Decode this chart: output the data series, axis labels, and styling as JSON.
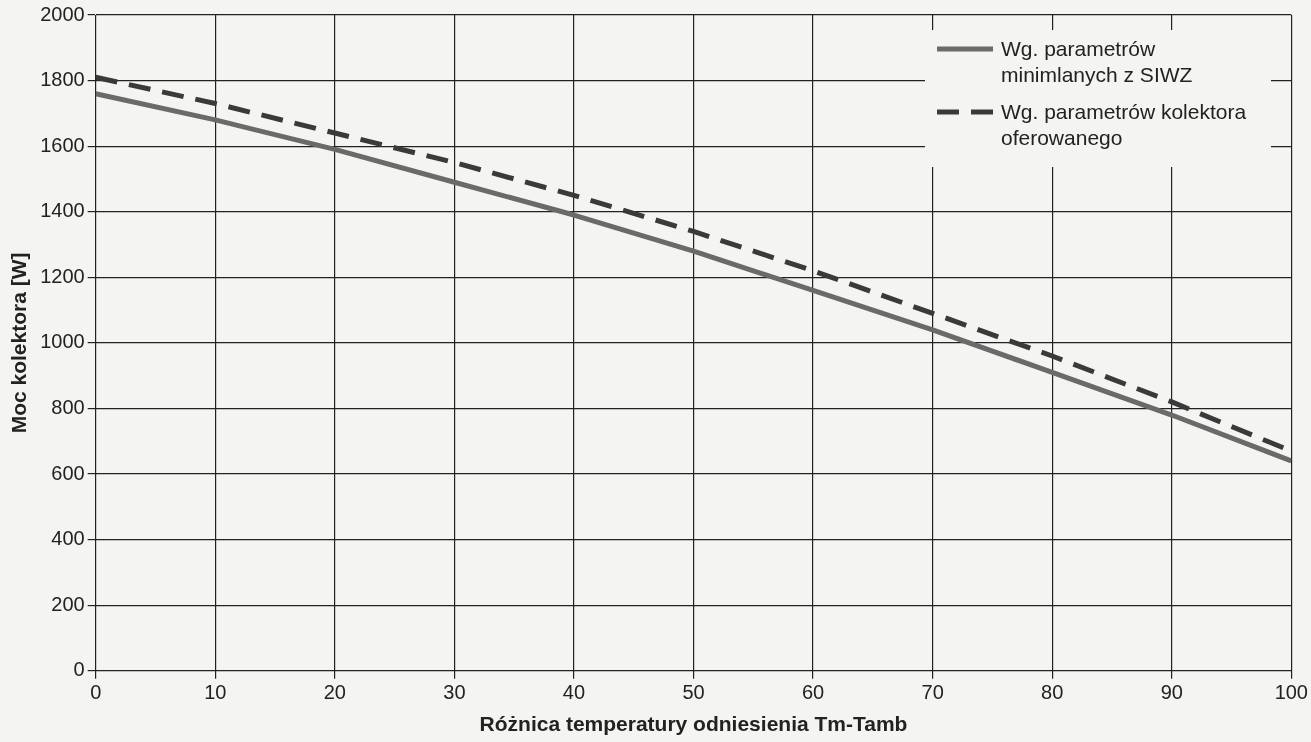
{
  "chart_data": {
    "type": "line",
    "xlabel": "Różnica temperatury odniesienia Tm-Tamb",
    "ylabel": "Moc kolektora [W]",
    "x": [
      0,
      10,
      20,
      30,
      40,
      50,
      60,
      70,
      80,
      90,
      100
    ],
    "series": [
      {
        "name": "Wg. parametrów minimlanych z SIWZ",
        "color": "#6a6a6a",
        "line_style": "solid",
        "values": [
          1760,
          1680,
          1590,
          1490,
          1390,
          1280,
          1160,
          1040,
          910,
          780,
          640
        ]
      },
      {
        "name": "Wg. parametrów kolektora oferowanego",
        "color": "#3a3a3a",
        "line_style": "dashed",
        "values": [
          1810,
          1730,
          1640,
          1550,
          1450,
          1340,
          1220,
          1090,
          960,
          820,
          670
        ]
      }
    ],
    "xlim": [
      0,
      100
    ],
    "xticks": [
      0,
      10,
      20,
      30,
      40,
      50,
      60,
      70,
      80,
      90,
      100
    ],
    "ylim": [
      0,
      2000
    ],
    "yticks": [
      0,
      200,
      400,
      600,
      800,
      1000,
      1200,
      1400,
      1600,
      1800,
      2000
    ],
    "grid": true,
    "legend": "top right",
    "marker": "none"
  }
}
